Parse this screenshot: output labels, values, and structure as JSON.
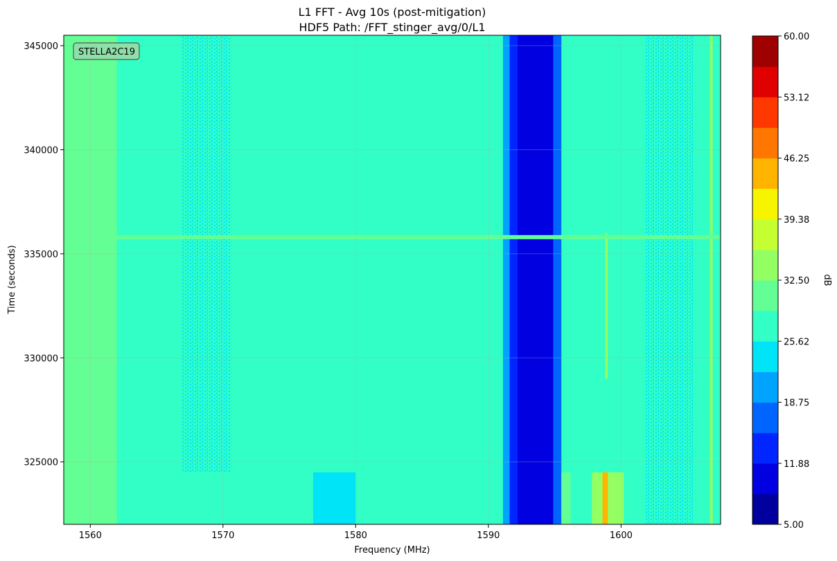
{
  "chart_data": {
    "type": "heatmap",
    "title_line1": "L1 FFT - Avg 10s (post-mitigation)",
    "title_line2": "HDF5 Path: /FFT_stinger_avg/0/L1",
    "xlabel": "Frequency (MHz)",
    "ylabel": "Time (seconds)",
    "xlim": [
      1558.0,
      1607.5
    ],
    "ylim": [
      322000,
      345500
    ],
    "x_ticks": [
      1560,
      1570,
      1580,
      1590,
      1600
    ],
    "y_ticks": [
      325000,
      330000,
      335000,
      340000,
      345000
    ],
    "grid": true,
    "annotation": "STELLA2C19",
    "annotation_position": "top-left",
    "colorbar": {
      "label": "dB",
      "range": [
        5.0,
        60.0
      ],
      "ticks": [
        "5.00",
        "11.88",
        "18.75",
        "25.62",
        "32.50",
        "39.38",
        "46.25",
        "53.12",
        "60.00"
      ],
      "levels": 16,
      "colors": [
        "#00009f",
        "#0000e1",
        "#0025ff",
        "#0065ff",
        "#00a4ff",
        "#00e4f7",
        "#31ffc5",
        "#63ff94",
        "#94ff63",
        "#c5ff31",
        "#f7f400",
        "#ffb500",
        "#ff7700",
        "#ff3800",
        "#e10000",
        "#9f0000"
      ]
    },
    "regions": [
      {
        "label": "background",
        "x": [
          1558.0,
          1607.5
        ],
        "t": [
          322000,
          345500
        ],
        "db": 28
      },
      {
        "label": "low-edge band",
        "x": [
          1558.0,
          1562.0
        ],
        "t": [
          322000,
          345500
        ],
        "db": 31
      },
      {
        "label": "lower speckled band",
        "x": [
          1566.9,
          1570.6
        ],
        "t": [
          324500,
          345500
        ],
        "db": 26
      },
      {
        "label": "low-freq patch",
        "x": [
          1576.8,
          1580.0
        ],
        "t": [
          322000,
          324500
        ],
        "db": 25
      },
      {
        "label": "notch edge",
        "x": [
          1591.1,
          1591.6
        ],
        "t": [
          322000,
          345500
        ],
        "db": 20
      },
      {
        "label": "notch edge",
        "x": [
          1591.6,
          1592.2
        ],
        "t": [
          322000,
          345500
        ],
        "db": 15
      },
      {
        "label": "deep notch",
        "x": [
          1592.2,
          1594.9
        ],
        "t": [
          322000,
          345500
        ],
        "db": 11
      },
      {
        "label": "notch edge",
        "x": [
          1594.9,
          1595.5
        ],
        "t": [
          322000,
          345500
        ],
        "db": 18
      },
      {
        "label": "notch shoulder",
        "x": [
          1595.5,
          1596.2
        ],
        "t": [
          322000,
          324500
        ],
        "db": 32
      },
      {
        "label": "mid patch",
        "x": [
          1597.8,
          1600.2
        ],
        "t": [
          322000,
          324500
        ],
        "db": 33
      },
      {
        "label": "narrowband interferer",
        "x": [
          1598.6,
          1599.0
        ],
        "t": [
          322000,
          324500
        ],
        "db": 45
      },
      {
        "label": "spur line",
        "x": [
          1598.8,
          1599.0
        ],
        "t": [
          329000,
          336000
        ],
        "db": 35
      },
      {
        "label": "upper speckled band",
        "x": [
          1601.8,
          1605.5
        ],
        "t": [
          322000,
          345500
        ],
        "db": 26
      },
      {
        "label": "upper spur",
        "x": [
          1606.7,
          1606.9
        ],
        "t": [
          322000,
          345500
        ],
        "db": 35
      },
      {
        "label": "broadband transient",
        "x": [
          1558.0,
          1607.5
        ],
        "t": [
          335700,
          335900
        ],
        "db": 30
      }
    ]
  }
}
